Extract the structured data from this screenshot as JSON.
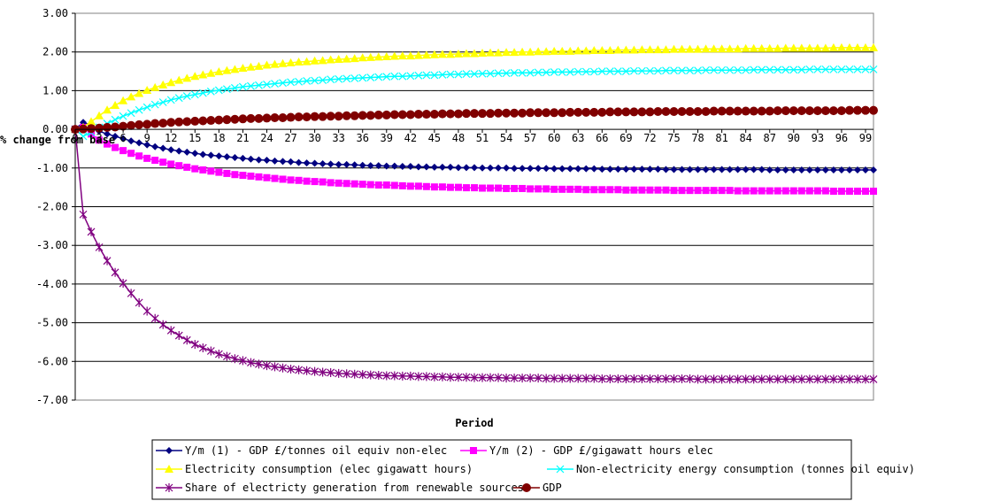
{
  "chart_data": {
    "type": "line",
    "xlabel": "Period",
    "ylabel": "% change from base",
    "ylim": [
      -7,
      3
    ],
    "yticks": [
      "3.00",
      "2.00",
      "1.00",
      "0.00",
      "-1.00",
      "-2.00",
      "-3.00",
      "-4.00",
      "-5.00",
      "-6.00",
      "-7.00"
    ],
    "x": [
      0,
      1,
      2,
      3,
      4,
      5,
      6,
      7,
      8,
      9,
      10,
      11,
      12,
      13,
      14,
      15,
      16,
      17,
      18,
      19,
      20,
      21,
      22,
      23,
      24,
      25,
      26,
      27,
      28,
      29,
      30,
      31,
      32,
      33,
      34,
      35,
      36,
      37,
      38,
      39,
      40,
      41,
      42,
      43,
      44,
      45,
      46,
      47,
      48,
      49,
      50,
      51,
      52,
      53,
      54,
      55,
      56,
      57,
      58,
      59,
      60,
      61,
      62,
      63,
      64,
      65,
      66,
      67,
      68,
      69,
      70,
      71,
      72,
      73,
      74,
      75,
      76,
      77,
      78,
      79,
      80,
      81,
      82,
      83,
      84,
      85,
      86,
      87,
      88,
      89,
      90,
      91,
      92,
      93,
      94,
      95,
      96,
      97,
      98,
      99,
      100
    ],
    "xticks": [
      "0",
      "3",
      "6",
      "9",
      "12",
      "15",
      "18",
      "21",
      "24",
      "27",
      "30",
      "33",
      "36",
      "39",
      "42",
      "45",
      "48",
      "51",
      "54",
      "57",
      "60",
      "63",
      "66",
      "69",
      "72",
      "75",
      "78",
      "81",
      "84",
      "87",
      "90",
      "93",
      "96",
      "99"
    ],
    "grid": true,
    "legend_position": "bottom",
    "series": [
      {
        "name": "Y/m (1) - GDP £/tonnes oil equiv non-elec",
        "color": "#000080",
        "marker": "diamond",
        "values": [
          0.0,
          0.18,
          0.1,
          -0.05,
          -0.12,
          -0.18,
          -0.24,
          -0.3,
          -0.35,
          -0.4,
          -0.45,
          -0.49,
          -0.53,
          -0.56,
          -0.59,
          -0.62,
          -0.65,
          -0.67,
          -0.69,
          -0.71,
          -0.73,
          -0.75,
          -0.77,
          -0.79,
          -0.8,
          -0.82,
          -0.83,
          -0.84,
          -0.86,
          -0.87,
          -0.88,
          -0.89,
          -0.9,
          -0.91,
          -0.91,
          -0.92,
          -0.93,
          -0.94,
          -0.94,
          -0.95,
          -0.95,
          -0.96,
          -0.96,
          -0.97,
          -0.97,
          -0.98,
          -0.98,
          -0.98,
          -0.99,
          -0.99,
          -0.99,
          -1.0,
          -1.0,
          -1.0,
          -1.0,
          -1.01,
          -1.01,
          -1.01,
          -1.01,
          -1.01,
          -1.02,
          -1.02,
          -1.02,
          -1.02,
          -1.02,
          -1.02,
          -1.03,
          -1.03,
          -1.03,
          -1.03,
          -1.03,
          -1.03,
          -1.03,
          -1.03,
          -1.04,
          -1.04,
          -1.04,
          -1.04,
          -1.04,
          -1.04,
          -1.04,
          -1.04,
          -1.04,
          -1.04,
          -1.04,
          -1.04,
          -1.04,
          -1.05,
          -1.05,
          -1.05,
          -1.05,
          -1.05,
          -1.05,
          -1.05,
          -1.05,
          -1.05,
          -1.05,
          -1.05,
          -1.05,
          -1.05,
          -1.05
        ]
      },
      {
        "name": "Y/m (2) - GDP £/gigawatt hours elec",
        "color": "#FF00FF",
        "marker": "square",
        "values": [
          0.0,
          0.05,
          -0.12,
          -0.28,
          -0.38,
          -0.47,
          -0.55,
          -0.62,
          -0.69,
          -0.75,
          -0.8,
          -0.85,
          -0.9,
          -0.94,
          -0.98,
          -1.02,
          -1.05,
          -1.08,
          -1.11,
          -1.14,
          -1.17,
          -1.19,
          -1.21,
          -1.23,
          -1.25,
          -1.27,
          -1.29,
          -1.31,
          -1.32,
          -1.34,
          -1.35,
          -1.36,
          -1.38,
          -1.39,
          -1.4,
          -1.41,
          -1.42,
          -1.43,
          -1.44,
          -1.44,
          -1.45,
          -1.46,
          -1.47,
          -1.47,
          -1.48,
          -1.49,
          -1.49,
          -1.5,
          -1.5,
          -1.51,
          -1.51,
          -1.52,
          -1.52,
          -1.52,
          -1.53,
          -1.53,
          -1.53,
          -1.54,
          -1.54,
          -1.54,
          -1.55,
          -1.55,
          -1.55,
          -1.55,
          -1.56,
          -1.56,
          -1.56,
          -1.56,
          -1.56,
          -1.57,
          -1.57,
          -1.57,
          -1.57,
          -1.57,
          -1.57,
          -1.58,
          -1.58,
          -1.58,
          -1.58,
          -1.58,
          -1.58,
          -1.58,
          -1.58,
          -1.59,
          -1.59,
          -1.59,
          -1.59,
          -1.59,
          -1.59,
          -1.59,
          -1.59,
          -1.59,
          -1.59,
          -1.59,
          -1.59,
          -1.6,
          -1.6,
          -1.6,
          -1.6,
          -1.6,
          -1.6
        ]
      },
      {
        "name": "Electricity consumption (elec gigawatt hours)",
        "color": "#FFFF00",
        "marker": "triangle",
        "values": [
          0.0,
          0.05,
          0.2,
          0.35,
          0.5,
          0.62,
          0.74,
          0.84,
          0.93,
          1.01,
          1.08,
          1.15,
          1.21,
          1.27,
          1.32,
          1.37,
          1.41,
          1.45,
          1.49,
          1.52,
          1.55,
          1.58,
          1.61,
          1.63,
          1.66,
          1.68,
          1.7,
          1.72,
          1.74,
          1.75,
          1.77,
          1.78,
          1.8,
          1.81,
          1.82,
          1.83,
          1.85,
          1.86,
          1.87,
          1.88,
          1.89,
          1.9,
          1.9,
          1.91,
          1.92,
          1.93,
          1.94,
          1.94,
          1.95,
          1.96,
          1.96,
          1.97,
          1.98,
          1.98,
          1.99,
          1.99,
          2.0,
          2.0,
          2.01,
          2.01,
          2.02,
          2.02,
          2.02,
          2.03,
          2.03,
          2.04,
          2.04,
          2.04,
          2.05,
          2.05,
          2.05,
          2.06,
          2.06,
          2.06,
          2.06,
          2.07,
          2.07,
          2.07,
          2.07,
          2.08,
          2.08,
          2.08,
          2.08,
          2.08,
          2.09,
          2.09,
          2.09,
          2.09,
          2.09,
          2.1,
          2.1,
          2.1,
          2.1,
          2.1,
          2.1,
          2.11,
          2.11,
          2.11,
          2.11,
          2.11,
          2.11
        ]
      },
      {
        "name": "Non-electricity energy consumption (tonnes oil equiv)",
        "color": "#00FFFF",
        "marker": "x",
        "values": [
          0.0,
          -0.18,
          -0.08,
          0.05,
          0.15,
          0.25,
          0.34,
          0.42,
          0.5,
          0.57,
          0.64,
          0.7,
          0.76,
          0.81,
          0.86,
          0.9,
          0.94,
          0.98,
          1.01,
          1.04,
          1.07,
          1.1,
          1.12,
          1.14,
          1.16,
          1.18,
          1.2,
          1.22,
          1.23,
          1.25,
          1.26,
          1.27,
          1.29,
          1.3,
          1.31,
          1.32,
          1.33,
          1.34,
          1.35,
          1.36,
          1.37,
          1.37,
          1.38,
          1.39,
          1.4,
          1.4,
          1.41,
          1.42,
          1.42,
          1.43,
          1.43,
          1.44,
          1.44,
          1.45,
          1.45,
          1.46,
          1.46,
          1.46,
          1.47,
          1.47,
          1.48,
          1.48,
          1.48,
          1.49,
          1.49,
          1.49,
          1.5,
          1.5,
          1.5,
          1.5,
          1.51,
          1.51,
          1.51,
          1.51,
          1.52,
          1.52,
          1.52,
          1.52,
          1.52,
          1.53,
          1.53,
          1.53,
          1.53,
          1.53,
          1.53,
          1.54,
          1.54,
          1.54,
          1.54,
          1.54,
          1.54,
          1.54,
          1.55,
          1.55,
          1.55,
          1.55,
          1.55,
          1.55,
          1.55,
          1.55,
          1.55
        ]
      },
      {
        "name": "Share of electricty generation from renewable sources",
        "color": "#800080",
        "marker": "star",
        "values": [
          0.0,
          -2.2,
          -2.65,
          -3.05,
          -3.4,
          -3.7,
          -3.98,
          -4.24,
          -4.48,
          -4.7,
          -4.89,
          -5.05,
          -5.2,
          -5.33,
          -5.45,
          -5.56,
          -5.65,
          -5.73,
          -5.81,
          -5.87,
          -5.93,
          -5.98,
          -6.03,
          -6.07,
          -6.11,
          -6.14,
          -6.17,
          -6.2,
          -6.22,
          -6.24,
          -6.26,
          -6.28,
          -6.29,
          -6.31,
          -6.32,
          -6.33,
          -6.34,
          -6.35,
          -6.36,
          -6.37,
          -6.37,
          -6.38,
          -6.38,
          -6.39,
          -6.39,
          -6.4,
          -6.4,
          -6.41,
          -6.41,
          -6.41,
          -6.42,
          -6.42,
          -6.42,
          -6.42,
          -6.43,
          -6.43,
          -6.43,
          -6.43,
          -6.43,
          -6.44,
          -6.44,
          -6.44,
          -6.44,
          -6.44,
          -6.44,
          -6.44,
          -6.45,
          -6.45,
          -6.45,
          -6.45,
          -6.45,
          -6.45,
          -6.45,
          -6.45,
          -6.45,
          -6.45,
          -6.45,
          -6.45,
          -6.46,
          -6.46,
          -6.46,
          -6.46,
          -6.46,
          -6.46,
          -6.46,
          -6.46,
          -6.46,
          -6.46,
          -6.46,
          -6.46,
          -6.46,
          -6.46,
          -6.46,
          -6.46,
          -6.46,
          -6.46,
          -6.46,
          -6.46,
          -6.46,
          -6.46,
          -6.46
        ]
      },
      {
        "name": "GDP",
        "color": "#800000",
        "marker": "circle",
        "values": [
          0.0,
          0.01,
          0.02,
          0.03,
          0.05,
          0.06,
          0.08,
          0.1,
          0.12,
          0.13,
          0.15,
          0.16,
          0.18,
          0.19,
          0.2,
          0.21,
          0.22,
          0.23,
          0.24,
          0.25,
          0.26,
          0.27,
          0.28,
          0.28,
          0.29,
          0.3,
          0.3,
          0.31,
          0.32,
          0.32,
          0.33,
          0.33,
          0.34,
          0.34,
          0.35,
          0.35,
          0.36,
          0.36,
          0.37,
          0.37,
          0.38,
          0.38,
          0.38,
          0.39,
          0.39,
          0.39,
          0.4,
          0.4,
          0.4,
          0.41,
          0.41,
          0.41,
          0.41,
          0.42,
          0.42,
          0.42,
          0.42,
          0.43,
          0.43,
          0.43,
          0.43,
          0.43,
          0.44,
          0.44,
          0.44,
          0.44,
          0.44,
          0.45,
          0.45,
          0.45,
          0.45,
          0.45,
          0.45,
          0.46,
          0.46,
          0.46,
          0.46,
          0.46,
          0.46,
          0.46,
          0.47,
          0.47,
          0.47,
          0.47,
          0.47,
          0.47,
          0.47,
          0.47,
          0.48,
          0.48,
          0.48,
          0.48,
          0.48,
          0.48,
          0.48,
          0.48,
          0.48,
          0.49,
          0.49,
          0.49,
          0.49
        ]
      }
    ]
  }
}
